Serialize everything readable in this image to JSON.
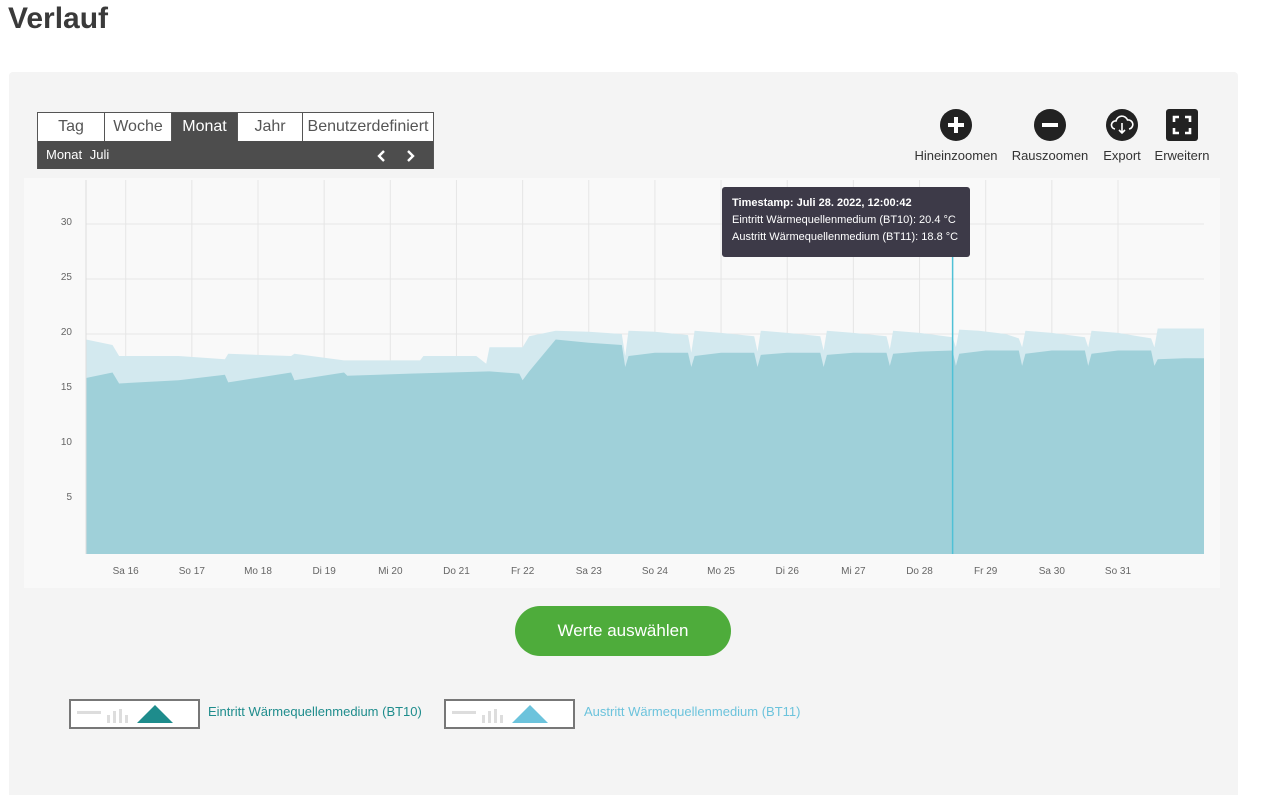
{
  "page": {
    "title": "Verlauf"
  },
  "range_selector": {
    "tabs": [
      "Tag",
      "Woche",
      "Monat",
      "Jahr",
      "Benutzerdefiniert"
    ],
    "active_tab": "Monat",
    "period_label": "Monat",
    "period_value": "Juli",
    "prev_symbol": "‹",
    "next_symbol": "›"
  },
  "toolbar": {
    "zoom_in": "Hineinzoomen",
    "zoom_out": "Rauszoomen",
    "export": "Export",
    "expand": "Erweitern"
  },
  "tooltip": {
    "title": "Timestamp: Juli 28. 2022, 12:00:42",
    "line1": "Eintritt Wärmequellenmedium (BT10): 20.4 °C",
    "line2": "Austritt Wärmequellenmedium (BT11): 18.8 °C"
  },
  "select_button": "Werte auswählen",
  "legend": [
    {
      "label": "Eintritt Wärmequellenmedium (BT10)",
      "color": "#1e8c8c",
      "icon": "area-chart-icon"
    },
    {
      "label": "Austritt Wärmequellenmedium (BT11)",
      "color": "#6cc3dc",
      "icon": "area-chart-icon"
    }
  ],
  "colors": {
    "series_bt10": "#9fd0d9",
    "series_bt11": "#d3e9ef",
    "select_button": "#4eac3b",
    "dark": "#4d4d4d"
  },
  "chart_data": {
    "type": "area",
    "y_ticks": [
      5,
      10,
      15,
      20,
      25,
      30
    ],
    "ylim": [
      0,
      34
    ],
    "x_tick_labels": [
      "Sa 16",
      "So 17",
      "Mo 18",
      "Di 19",
      "Mi 20",
      "Do 21",
      "Fr 22",
      "Sa 23",
      "So 24",
      "Mo 25",
      "Di 26",
      "Mi 27",
      "Do 28",
      "Fr 29",
      "Sa 30",
      "So 31"
    ],
    "x_tick_days": [
      16,
      17,
      18,
      19,
      20,
      21,
      22,
      23,
      24,
      25,
      26,
      27,
      28,
      29,
      30,
      31
    ],
    "xlim": [
      15.4,
      32.3
    ],
    "cursor_day": 28.5,
    "series": [
      {
        "name": "Eintritt Wärmequellenmedium (BT10)",
        "color": "#d3e9ef",
        "x": [
          15.4,
          15.8,
          15.9,
          16.8,
          17.5,
          17.55,
          18.5,
          18.55,
          19.3,
          19.35,
          20.3,
          20.45,
          20.5,
          21.3,
          21.45,
          21.5,
          21.95,
          22.0,
          22.1,
          22.5,
          23.0,
          23.5,
          23.55,
          23.6,
          24.0,
          24.5,
          24.55,
          24.6,
          25.0,
          25.5,
          25.55,
          25.6,
          26.0,
          26.5,
          26.55,
          26.6,
          27.0,
          27.5,
          27.55,
          27.6,
          28.0,
          28.5,
          28.55,
          28.6,
          28.9,
          29.3,
          29.5,
          29.55,
          29.6,
          30.0,
          30.5,
          30.55,
          30.6,
          31.0,
          31.5,
          31.55,
          31.6,
          32.0,
          32.3
        ],
        "y": [
          19.5,
          19.0,
          18.0,
          18.0,
          17.7,
          18.2,
          18.0,
          18.2,
          17.6,
          17.6,
          17.6,
          17.6,
          18.0,
          18.0,
          17.3,
          18.8,
          18.8,
          18.8,
          19.8,
          20.3,
          20.2,
          20.0,
          18.0,
          20.3,
          20.2,
          19.9,
          18.3,
          20.3,
          20.1,
          19.8,
          18.4,
          20.3,
          20.1,
          19.8,
          18.5,
          20.3,
          20.1,
          19.8,
          18.6,
          20.3,
          20.1,
          19.7,
          18.8,
          20.4,
          20.3,
          20.0,
          19.6,
          18.8,
          20.3,
          20.1,
          19.7,
          18.8,
          20.3,
          20.1,
          19.6,
          18.8,
          20.5,
          20.5,
          20.5
        ]
      },
      {
        "name": "Austritt Wärmequellenmedium (BT11)",
        "color": "#9fd0d9",
        "x": [
          15.4,
          15.8,
          15.9,
          16.8,
          17.5,
          17.55,
          18.5,
          18.55,
          19.3,
          19.35,
          20.3,
          21.5,
          21.95,
          22.0,
          22.1,
          22.5,
          23.0,
          23.5,
          23.55,
          23.6,
          24.0,
          24.5,
          24.55,
          24.6,
          25.0,
          25.5,
          25.55,
          25.6,
          26.0,
          26.5,
          26.55,
          26.6,
          27.0,
          27.5,
          27.55,
          27.6,
          28.0,
          28.5,
          28.55,
          28.6,
          29.0,
          29.5,
          29.55,
          29.6,
          30.0,
          30.5,
          30.55,
          30.6,
          31.0,
          31.5,
          31.55,
          31.6,
          32.0,
          32.3
        ],
        "y": [
          16.0,
          16.5,
          15.5,
          15.8,
          16.3,
          15.6,
          16.5,
          15.8,
          16.5,
          16.2,
          16.4,
          16.6,
          16.4,
          15.8,
          16.6,
          19.5,
          19.2,
          19.0,
          17.0,
          18.0,
          18.3,
          18.3,
          17.0,
          18.0,
          18.3,
          18.3,
          17.0,
          18.1,
          18.3,
          18.3,
          17.0,
          18.1,
          18.3,
          18.3,
          17.1,
          18.2,
          18.4,
          18.5,
          17.1,
          18.2,
          18.5,
          18.5,
          17.1,
          18.2,
          18.5,
          18.5,
          17.1,
          18.2,
          18.5,
          18.5,
          17.1,
          17.7,
          17.8,
          17.8
        ]
      }
    ]
  }
}
